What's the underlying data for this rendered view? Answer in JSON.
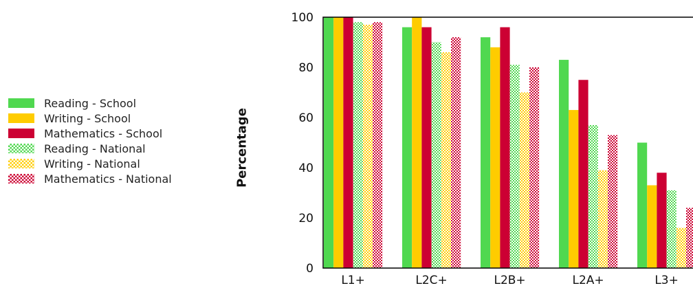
{
  "chart_data": {
    "type": "bar",
    "title": "",
    "xlabel": "",
    "ylabel": "Percentage",
    "ylim": [
      0,
      100
    ],
    "yticks": [
      0,
      20,
      40,
      60,
      80,
      100
    ],
    "grid": false,
    "legend_position": "left",
    "categories": [
      "L1+",
      "L2C+",
      "L2B+",
      "L2A+",
      "L3+"
    ],
    "series": [
      {
        "name": "Reading - School",
        "values": [
          100,
          96,
          92,
          83,
          50
        ],
        "color": "#50d850",
        "pattern": "solid"
      },
      {
        "name": "Writing - School",
        "values": [
          100,
          100,
          88,
          63,
          33
        ],
        "color": "#ffcc00",
        "pattern": "solid"
      },
      {
        "name": "Mathematics - School",
        "values": [
          100,
          96,
          96,
          75,
          38
        ],
        "color": "#cc0033",
        "pattern": "solid"
      },
      {
        "name": "Reading - National",
        "values": [
          98,
          90,
          81,
          57,
          31
        ],
        "color": "#50d850",
        "pattern": "checker"
      },
      {
        "name": "Writing - National",
        "values": [
          97,
          86,
          70,
          39,
          16
        ],
        "color": "#ffcc00",
        "pattern": "checker"
      },
      {
        "name": "Mathematics - National",
        "values": [
          98,
          92,
          80,
          53,
          24
        ],
        "color": "#cc0033",
        "pattern": "checker"
      }
    ]
  }
}
